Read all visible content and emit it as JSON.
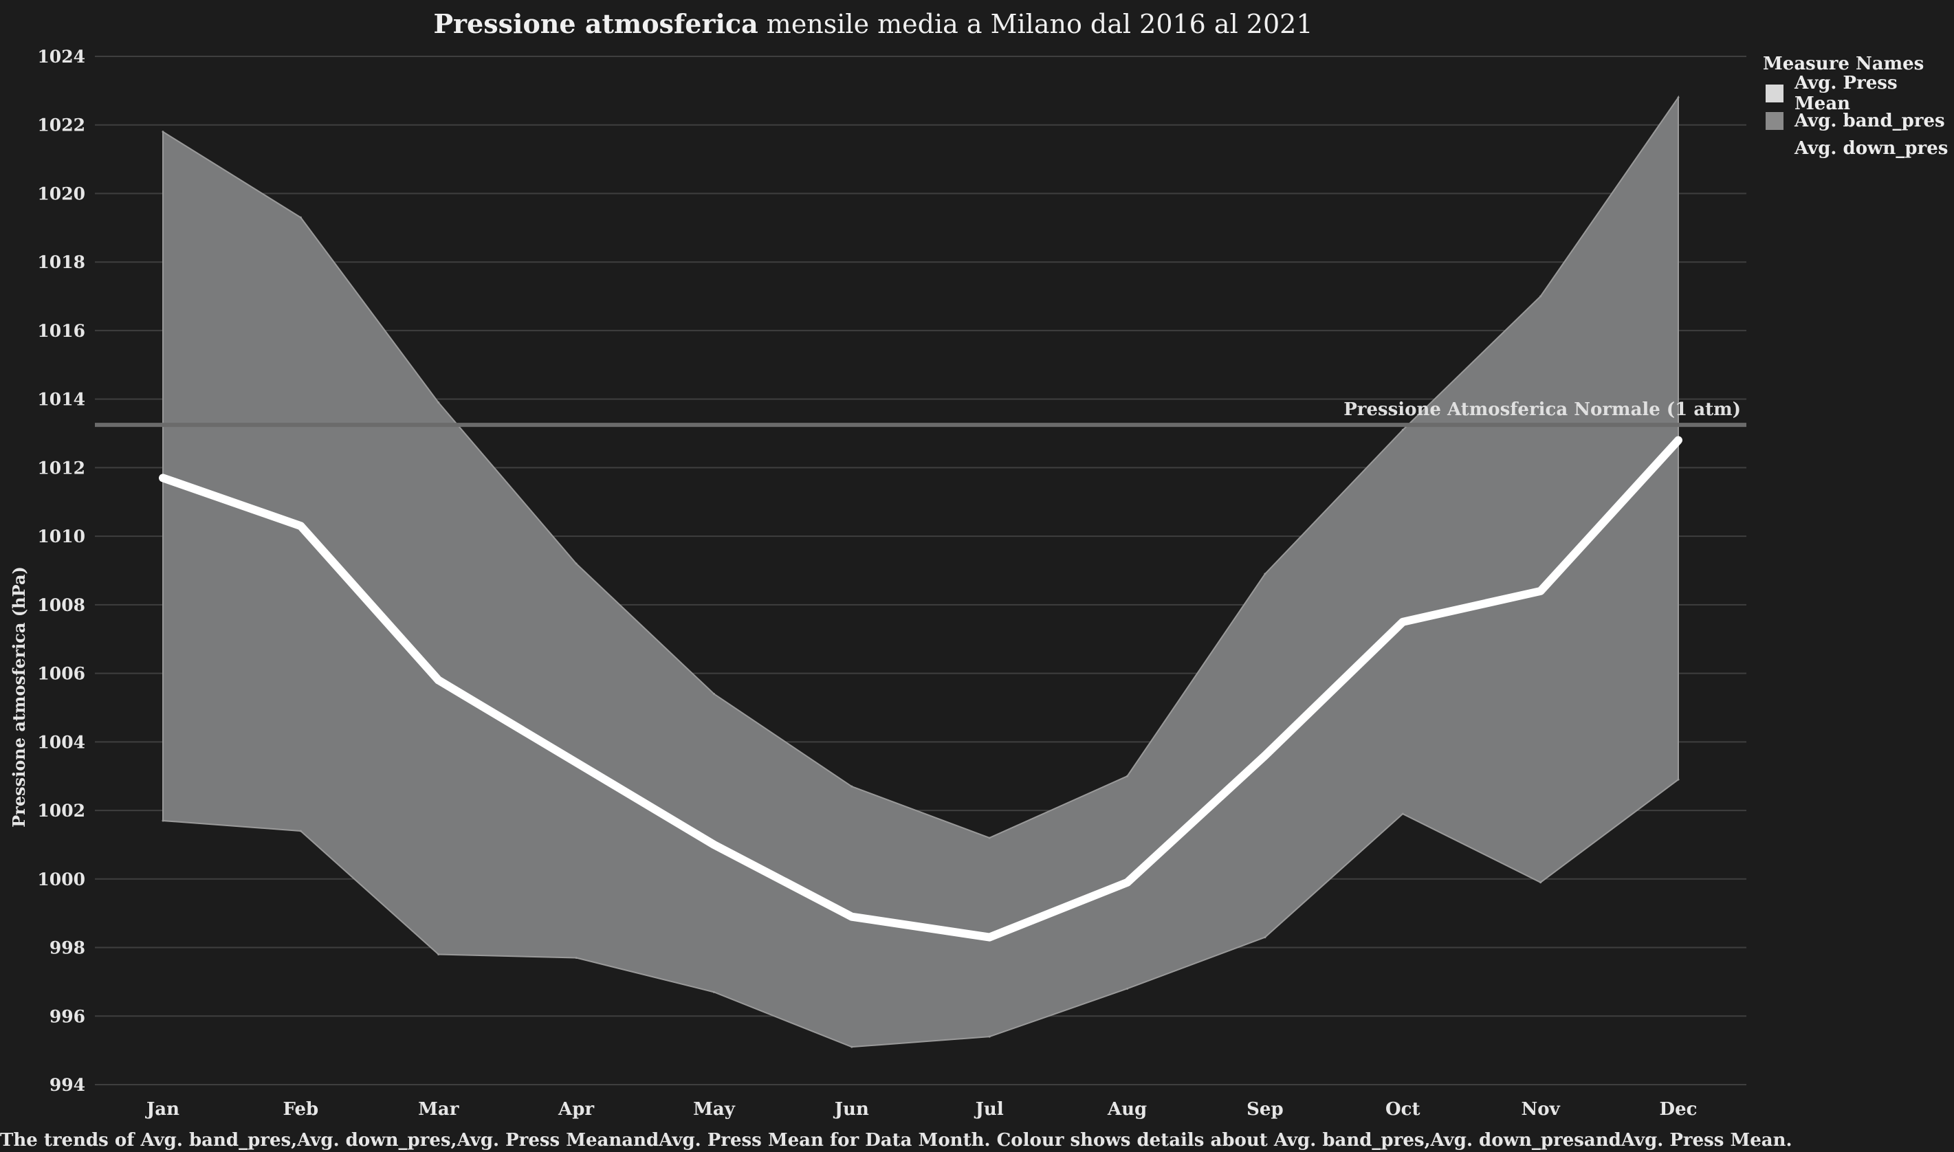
{
  "title_bold": "Pressione atmosferica",
  "title_rest": " mensile media a Milano dal 2016 al 2021",
  "legend": {
    "title": "Measure Names",
    "items": [
      {
        "label": "Avg. Press Mean",
        "color": "#d9d9d9"
      },
      {
        "label": "Avg. band_pres",
        "color": "#8a8a8a"
      },
      {
        "label": "Avg. down_pres",
        "color": ""
      }
    ]
  },
  "footnote": "The trends of Avg. band_pres,Avg. down_pres,Avg. Press MeanandAvg. Press Mean for Data Month. Colour shows details about Avg. band_pres,Avg. down_presandAvg. Press Mean.",
  "chart_data": {
    "type": "area",
    "ylabel": "Pressione atmosferica (hPa)",
    "xlabel": "",
    "ylim": [
      994,
      1024
    ],
    "yticks": [
      994,
      996,
      998,
      1000,
      1002,
      1004,
      1006,
      1008,
      1010,
      1012,
      1014,
      1016,
      1018,
      1020,
      1022,
      1024
    ],
    "categories": [
      "Jan",
      "Feb",
      "Mar",
      "Apr",
      "May",
      "Jun",
      "Jul",
      "Aug",
      "Sep",
      "Oct",
      "Nov",
      "Dec"
    ],
    "grid": true,
    "legend_position": "top-right",
    "series": [
      {
        "name": "Avg. Press Mean",
        "kind": "line",
        "color": "#ffffff",
        "values": [
          1011.7,
          1010.3,
          1005.8,
          1003.4,
          1001.0,
          998.9,
          998.3,
          999.9,
          1003.6,
          1007.5,
          1008.4,
          1012.8
        ]
      },
      {
        "name": "Avg. band_pres",
        "kind": "band-upper",
        "color": "#7a7b7c",
        "values": [
          1021.8,
          1019.3,
          1013.9,
          1009.2,
          1005.4,
          1002.7,
          1001.2,
          1003.0,
          1008.9,
          1013.1,
          1017.0,
          1022.8
        ]
      },
      {
        "name": "Avg. down_pres",
        "kind": "band-lower",
        "values": [
          1001.7,
          1001.4,
          997.8,
          997.7,
          996.7,
          995.1,
          995.4,
          996.8,
          998.3,
          1001.9,
          999.9,
          1002.9
        ]
      }
    ],
    "reference_line": {
      "label": "Pressione Atmosferica Normale (1 atm)",
      "value": 1013.25,
      "color": "#6b6b6b"
    }
  }
}
